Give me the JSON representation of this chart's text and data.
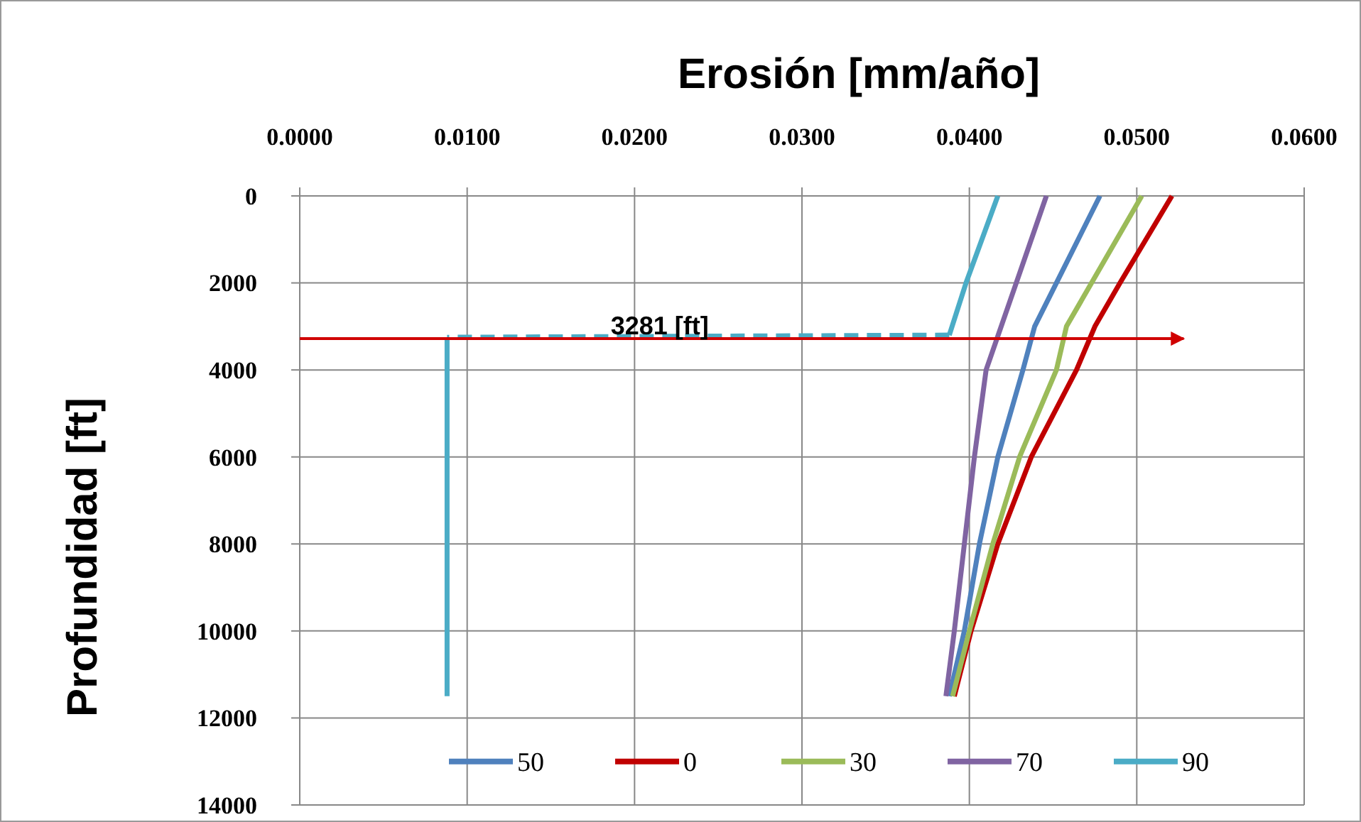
{
  "chart_data": {
    "type": "line",
    "xlabel": "Erosión [mm/año]",
    "ylabel": "Profundidad [ft]",
    "xlim": [
      0,
      0.06
    ],
    "xticks": [
      {
        "value": 0,
        "label": "0.0000"
      },
      {
        "value": 0.01,
        "label": "0.0100"
      },
      {
        "value": 0.02,
        "label": "0.0200"
      },
      {
        "value": 0.03,
        "label": "0.0300"
      },
      {
        "value": 0.04,
        "label": "0.0400"
      },
      {
        "value": 0.05,
        "label": "0.0500"
      },
      {
        "value": 0.06,
        "label": "0.0600"
      }
    ],
    "ylim": [
      14000,
      0
    ],
    "yticks": [
      0,
      2000,
      4000,
      6000,
      8000,
      10000,
      12000,
      14000
    ],
    "grid": true,
    "legend": "bottom",
    "line_style": "solid",
    "marker": "none",
    "series": [
      {
        "name": "50",
        "color": "#4f81bd",
        "x": [
          0.0478,
          0.0452,
          0.0439,
          0.0432,
          0.0417,
          0.0406,
          0.0397,
          0.0388
        ],
        "values": [
          0,
          2000,
          3000,
          4000,
          6000,
          8000,
          10000,
          11500
        ]
      },
      {
        "name": "0",
        "color": "#c00000",
        "x": [
          0.0521,
          0.049,
          0.0475,
          0.0464,
          0.0437,
          0.0417,
          0.0401,
          0.0391
        ],
        "values": [
          0,
          2000,
          3000,
          4000,
          6000,
          8000,
          10000,
          11500
        ]
      },
      {
        "name": "30",
        "color": "#9bbb59",
        "x": [
          0.0503,
          0.0473,
          0.0458,
          0.0452,
          0.043,
          0.0414,
          0.04,
          0.039
        ],
        "values": [
          0,
          2000,
          3000,
          4000,
          6000,
          8000,
          10000,
          11500
        ]
      },
      {
        "name": "70",
        "color": "#8064a2",
        "x": [
          0.0446,
          0.0428,
          0.041,
          0.0403,
          0.0397,
          0.0391,
          0.0386
        ],
        "values": [
          0,
          2000,
          4000,
          6000,
          8000,
          10000,
          11500
        ]
      },
      {
        "name": "90",
        "color": "#4bacc6",
        "x": [
          0.0417,
          0.0398,
          0.0388
        ],
        "values": [
          0,
          2000,
          3200
        ]
      },
      {
        "color": "#4bacc6",
        "line_style": "dashed",
        "x": [
          0.0388,
          0.0088
        ],
        "values": [
          3200,
          3250
        ]
      },
      {
        "color": "#4bacc6",
        "x": [
          0.0088,
          0.0088
        ],
        "values": [
          3250,
          11500
        ]
      }
    ],
    "ref_lines": [
      {
        "axis": "y",
        "value": 3281,
        "label": "3281 [ft]",
        "color": "#d00000"
      }
    ]
  }
}
